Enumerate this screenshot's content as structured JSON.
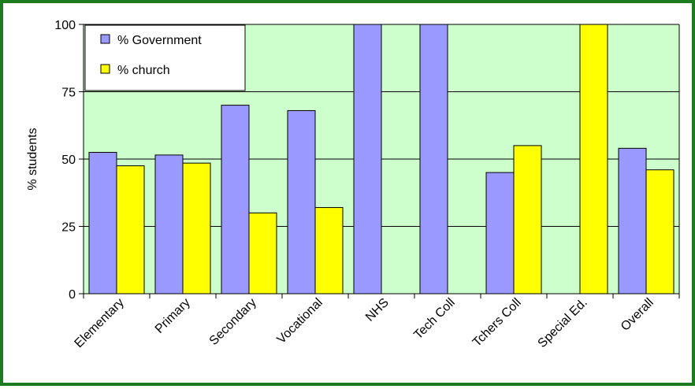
{
  "chart_data": {
    "type": "bar",
    "title": "",
    "xlabel": "",
    "ylabel": "% students",
    "ylim": [
      0,
      100
    ],
    "yticks": [
      0,
      25,
      50,
      75,
      100
    ],
    "grid": true,
    "legend_position": "top-left",
    "plot_background": "#ccffcc",
    "categories": [
      "Elementary",
      "Primary",
      "Secondary",
      "Vocational",
      "NHS",
      "Tech Coll",
      "Tchers Coll",
      "Special Ed.",
      "Overall"
    ],
    "series": [
      {
        "name": "% Government",
        "color": "#9999ff",
        "values": [
          52.5,
          51.5,
          70,
          68,
          100,
          100,
          45,
          0,
          54
        ]
      },
      {
        "name": "% church",
        "color": "#ffff00",
        "values": [
          47.5,
          48.5,
          30,
          32,
          0,
          0,
          55,
          100,
          46
        ]
      }
    ]
  }
}
